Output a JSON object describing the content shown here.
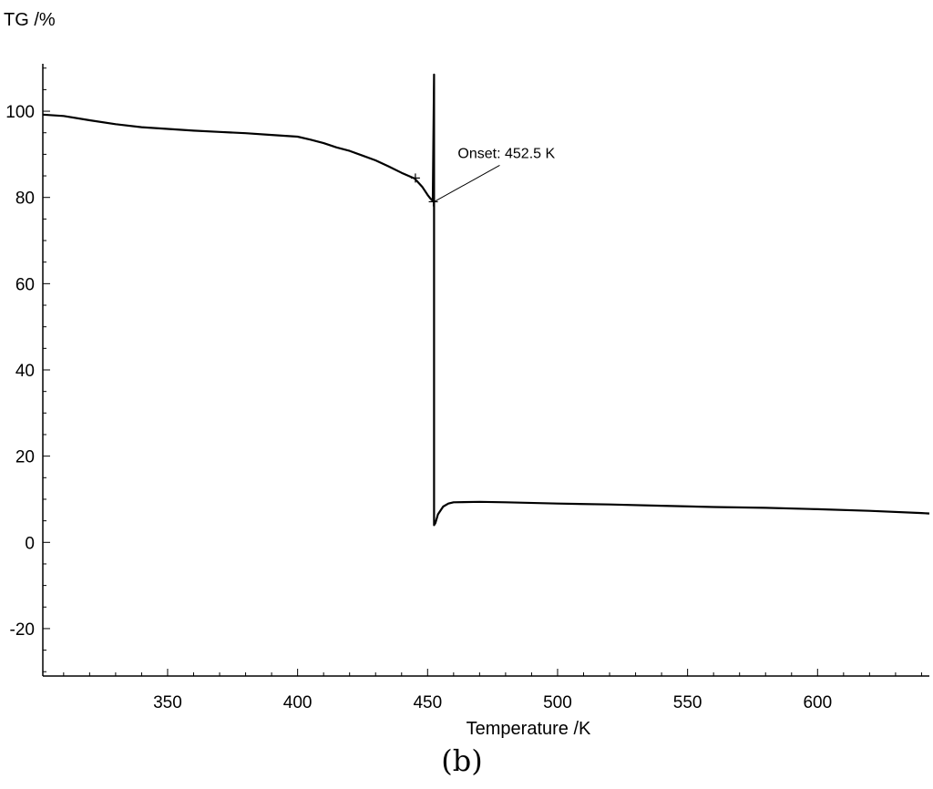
{
  "chart_data": {
    "type": "line",
    "ylabel": "TG /%",
    "xlabel": "Temperature /K",
    "panel_label": "(b)",
    "xlim": [
      302,
      643
    ],
    "ylim": [
      -31,
      111
    ],
    "xticks": [
      350,
      400,
      450,
      500,
      550,
      600
    ],
    "yticks": [
      100,
      80,
      60,
      40,
      20,
      0,
      -20
    ],
    "grid": false,
    "series": [
      {
        "x": [
          302,
          310,
          320,
          330,
          340,
          350,
          360,
          370,
          380,
          390,
          400,
          405,
          410,
          415,
          420,
          425,
          430,
          435,
          440,
          445,
          448,
          450,
          451,
          452,
          452.5,
          452.5,
          452.5,
          453,
          454,
          456,
          458,
          460,
          470,
          480,
          500,
          520,
          540,
          560,
          580,
          600,
          620,
          640,
          643
        ],
        "y": [
          99.2,
          98.9,
          97.9,
          97.0,
          96.3,
          95.9,
          95.5,
          95.2,
          94.9,
          94.5,
          94.1,
          93.4,
          92.6,
          91.6,
          90.8,
          89.7,
          88.6,
          87.2,
          85.7,
          84.4,
          82.4,
          80.6,
          79.8,
          79.2,
          108.5,
          79.0,
          4.0,
          4.5,
          6.5,
          8.3,
          9.0,
          9.3,
          9.4,
          9.3,
          9.0,
          8.8,
          8.5,
          8.2,
          8.0,
          7.7,
          7.3,
          6.8,
          6.7
        ]
      }
    ],
    "markers": [
      {
        "x": 445.3,
        "y": 84.5
      },
      {
        "x": 452.2,
        "y": 79.0
      }
    ],
    "annotation": {
      "text": "Onset: 452.5 K",
      "x": 452.5,
      "y": 79.0
    }
  }
}
